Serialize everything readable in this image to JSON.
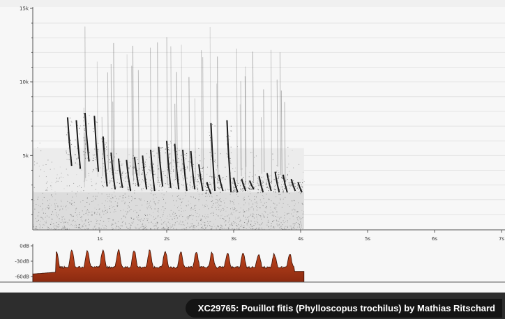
{
  "spectrogram": {
    "y_ticks": [
      {
        "value": 15000,
        "label": "15k"
      },
      {
        "value": 10000,
        "label": "10k"
      },
      {
        "value": 5000,
        "label": "5k"
      }
    ],
    "x_ticks": [
      {
        "value": 1,
        "label": "1s"
      },
      {
        "value": 2,
        "label": "2s"
      },
      {
        "value": 3,
        "label": "3s"
      },
      {
        "value": 4,
        "label": "4s"
      },
      {
        "value": 5,
        "label": "5s"
      },
      {
        "value": 6,
        "label": "6s"
      },
      {
        "value": 7,
        "label": "7s"
      }
    ],
    "recording_end_seconds": 4.05
  },
  "amplitude": {
    "db_ticks": [
      {
        "value": 0,
        "label": "0dB"
      },
      {
        "value": -30,
        "label": "-30dB"
      },
      {
        "value": -60,
        "label": "-60dB"
      }
    ],
    "fill_color": "#8b2a10"
  },
  "caption": {
    "text": "XC29765: Pouillot fitis (Phylloscopus trochilus) by Mathias Ritschard"
  }
}
